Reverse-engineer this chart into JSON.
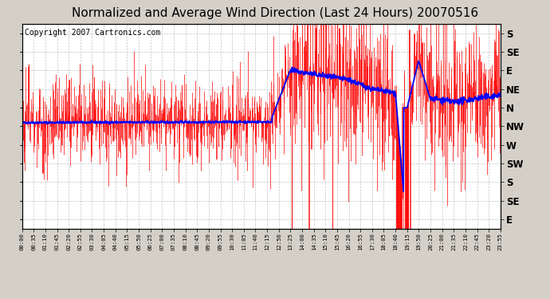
{
  "title": "Normalized and Average Wind Direction (Last 24 Hours) 20070516",
  "copyright": "Copyright 2007 Cartronics.com",
  "background_color": "#d4d0c8",
  "plot_bg_color": "#ffffff",
  "ytick_labels": [
    "S",
    "SE",
    "E",
    "NE",
    "N",
    "NW",
    "W",
    "SW",
    "S",
    "SE",
    "E"
  ],
  "ytick_values": [
    10,
    9,
    8,
    7,
    6,
    5,
    4,
    3,
    2,
    1,
    0
  ],
  "ylim": [
    -0.5,
    10.5
  ],
  "grid_color": "#aaaaaa",
  "red_color": "#ff0000",
  "blue_color": "#0000ff",
  "title_fontsize": 11,
  "copyright_fontsize": 7,
  "xtick_minutes": [
    0,
    35,
    70,
    105,
    140,
    175,
    210,
    245,
    280,
    315,
    350,
    385,
    420,
    455,
    490,
    525,
    560,
    595,
    630,
    665,
    700,
    735,
    770,
    805,
    840,
    875,
    910,
    945,
    980,
    1015,
    1050,
    1085,
    1120,
    1155,
    1190,
    1225,
    1260,
    1295,
    1330,
    1365,
    1400,
    1435
  ],
  "xtick_labels": [
    "00:00",
    "00:35",
    "01:10",
    "01:45",
    "02:20",
    "02:55",
    "03:30",
    "04:05",
    "04:40",
    "05:15",
    "05:50",
    "06:25",
    "07:00",
    "07:35",
    "08:10",
    "08:45",
    "09:20",
    "09:55",
    "10:30",
    "11:05",
    "11:40",
    "12:15",
    "12:50",
    "13:25",
    "14:00",
    "14:35",
    "15:10",
    "15:45",
    "16:20",
    "16:55",
    "17:30",
    "18:05",
    "18:40",
    "19:15",
    "19:50",
    "20:25",
    "21:00",
    "21:35",
    "22:10",
    "22:45",
    "23:20",
    "23:55"
  ]
}
